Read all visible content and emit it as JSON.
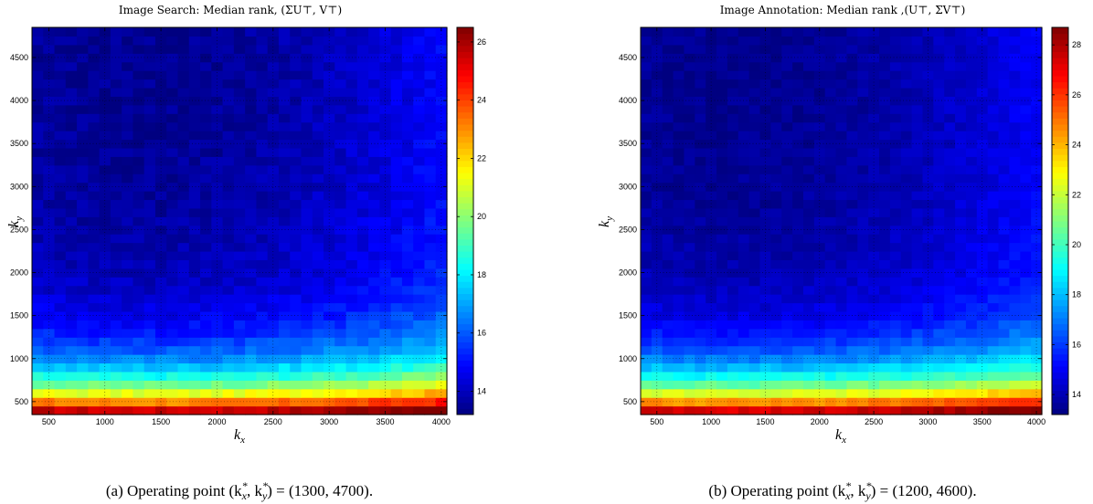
{
  "chart_data": [
    {
      "type": "heatmap",
      "title": "Image Search: Median rank, (ΣU⊤, V⊤)",
      "xlabel": "k_x",
      "ylabel": "k_y",
      "xlim": [
        350,
        4050
      ],
      "ylim": [
        350,
        4850
      ],
      "xticks": [
        500,
        1000,
        1500,
        2000,
        2500,
        3000,
        3500,
        4000
      ],
      "yticks": [
        500,
        1000,
        1500,
        2000,
        2500,
        3000,
        3500,
        4000,
        4500
      ],
      "colorbar": {
        "min": 13.2,
        "max": 26.5,
        "ticks": [
          14,
          16,
          18,
          20,
          22,
          24,
          26
        ]
      },
      "grid": true,
      "colormap": "jet",
      "surface": {
        "min_value": 13.4,
        "max_value": 26.2,
        "optimum_x": 1300,
        "optimum_y": 4700
      },
      "caption": {
        "label": "(a) Operating point ",
        "math": "(k",
        "sup": "*",
        "sub_x": "x",
        "sub_y": "y",
        "value": ") = (1300, 4700)."
      }
    },
    {
      "type": "heatmap",
      "title": "Image Annotation: Median rank ,(U⊤, ΣV⊤)",
      "xlabel": "k_x",
      "ylabel": "k_y",
      "xlim": [
        350,
        4050
      ],
      "ylim": [
        350,
        4850
      ],
      "xticks": [
        500,
        1000,
        1500,
        2000,
        2500,
        3000,
        3500,
        4000
      ],
      "yticks": [
        500,
        1000,
        1500,
        2000,
        2500,
        3000,
        3500,
        4000,
        4500
      ],
      "colorbar": {
        "min": 13.2,
        "max": 28.7,
        "ticks": [
          14,
          16,
          18,
          20,
          22,
          24,
          26,
          28
        ]
      },
      "grid": true,
      "colormap": "jet",
      "surface": {
        "min_value": 13.4,
        "max_value": 28.3,
        "optimum_x": 1200,
        "optimum_y": 4600
      },
      "caption": {
        "label": "(b) Operating point ",
        "math": "(k",
        "sup": "*",
        "sub_x": "x",
        "sub_y": "y",
        "value": ") = (1200, 4600)."
      }
    }
  ]
}
